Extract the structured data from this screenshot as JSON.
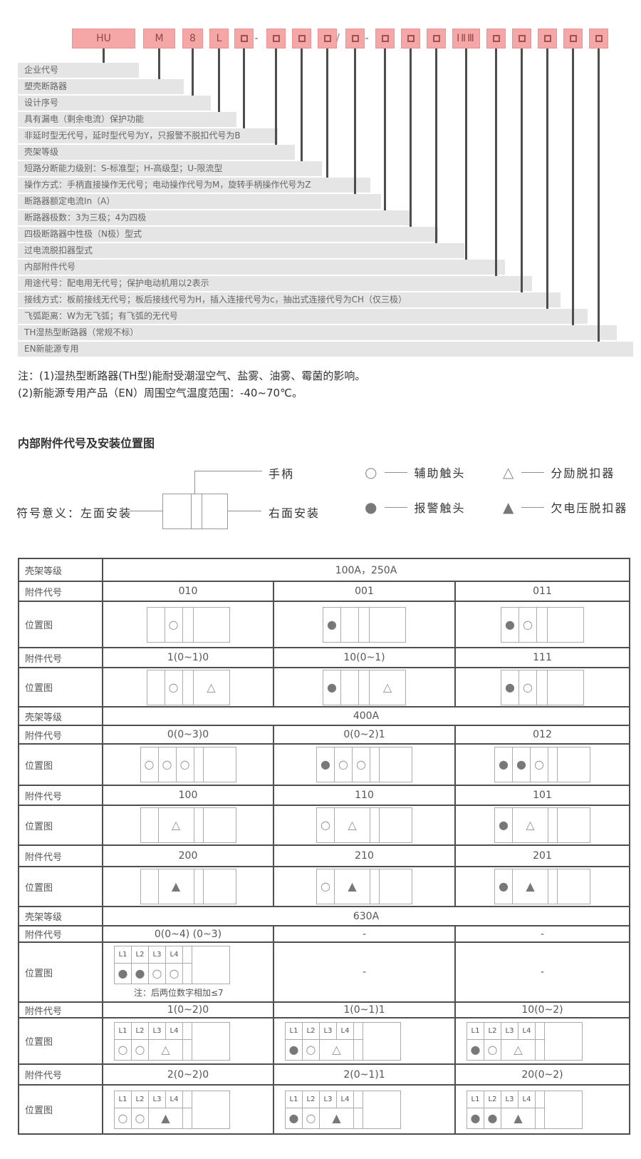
{
  "colors": {
    "accent_pink": "#F5A6A6",
    "accent_pink_border": "#EB9393",
    "code_text": "#8D4A45",
    "label_bg": "#E5E5E5",
    "connector_line": "#4D4D4D",
    "table_border": "#4F4F4F",
    "symbol_gray": "#8A8A8A"
  },
  "model_code": {
    "fields": [
      {
        "value": "HU",
        "description": "企业代号"
      },
      {
        "value": "M",
        "description": "塑壳断路器"
      },
      {
        "value": "8",
        "description": "设计序号"
      },
      {
        "value": "L",
        "description": "具有漏电（剩余电流）保护功能"
      },
      {
        "value": "□",
        "description": "非延时型无代号，延时型代号为Y，只报警不脱扣代号为B"
      },
      {
        "value": "□",
        "description": "壳架等级"
      },
      {
        "value": "□",
        "description": "短路分断能力级别：S-标准型；H-高级型；U-限流型"
      },
      {
        "value": "□",
        "description": "操作方式：手柄直接操作无代号；电动操作代号为M，旋转手柄操作代号为Z"
      },
      {
        "value": "□",
        "description": "断路器额定电流In（A）"
      },
      {
        "value": "□",
        "description": "断路器极数：3为三极；4为四极"
      },
      {
        "value": "□",
        "description": "四极断路器中性极（N极）型式"
      },
      {
        "value": "□",
        "description": "过电流脱扣器型式"
      },
      {
        "value": "ⅠⅡⅢ",
        "description": "内部附件代号"
      },
      {
        "value": "□",
        "description": "用途代号：配电用无代号；保护电动机用以2表示"
      },
      {
        "value": "□",
        "description": "接线方式：板前接线无代号；板后接线代号为H，插入连接代号为c，抽出式连接代号为CH（仅三极）"
      },
      {
        "value": "□",
        "description": "飞弧距离：W为无飞弧；有飞弧的无代号"
      },
      {
        "value": "□",
        "description": "TH湿热型断路器（常规不标）"
      },
      {
        "value": "□",
        "description": "EN新能源专用"
      }
    ],
    "separators": [
      {
        "char": "-",
        "after_field": 5
      },
      {
        "char": "/",
        "after_field": 8
      },
      {
        "char": "-",
        "after_field": 9
      }
    ]
  },
  "notes": [
    "注：(1)湿热型断路器(TH型)能耐受潮湿空气、盐雾、油雾、霉菌的影响。",
    "(2)新能源专用产品（EN）周围空气温度范围：-40~70℃。"
  ],
  "section_title": "内部附件代号及安装位置图",
  "legend": {
    "meaning_label": "符号意义：左面安装",
    "handle_label": "手柄",
    "right_label": "右面安装",
    "items": [
      {
        "symbol": "circle",
        "label": "辅助触头"
      },
      {
        "symbol": "triangle",
        "label": "分励脱扣器"
      },
      {
        "symbol": "filled-circle",
        "label": "报警触头"
      },
      {
        "symbol": "filled-triangle",
        "label": "欠电压脱扣器"
      }
    ]
  },
  "table": {
    "row_labels": {
      "frame": "壳架等级",
      "code": "附件代号",
      "position": "位置图"
    },
    "sections": [
      {
        "frame": "100A，250A",
        "rows": [
          {
            "cells": [
              {
                "code": "010",
                "diagram": {
                  "type": "A",
                  "symbols": {
                    "c2": "circle"
                  }
                }
              },
              {
                "code": "001",
                "diagram": {
                  "type": "A",
                  "symbols": {
                    "c1": "filled-circle"
                  }
                }
              },
              {
                "code": "011",
                "diagram": {
                  "type": "A",
                  "symbols": {
                    "c1": "filled-circle",
                    "c2": "circle"
                  }
                }
              }
            ]
          },
          {
            "cells": [
              {
                "code": "1(0~1)0",
                "diagram": {
                  "type": "A",
                  "symbols": {
                    "c2": "circle",
                    "c4": "triangle"
                  }
                }
              },
              {
                "code": "10(0~1)",
                "diagram": {
                  "type": "A",
                  "symbols": {
                    "c1": "filled-circle",
                    "c4": "triangle"
                  }
                }
              },
              {
                "code": "111",
                "diagram": {
                  "type": "A",
                  "symbols": {
                    "c1": "filled-circle",
                    "c2": "circle"
                  }
                }
              }
            ]
          }
        ]
      },
      {
        "frame": "400A",
        "rows": [
          {
            "cells": [
              {
                "code": "0(0~3)0",
                "diagram": {
                  "type": "B1",
                  "symbols": {
                    "c1": "circle",
                    "c2": "circle",
                    "c3": "circle"
                  }
                }
              },
              {
                "code": "0(0~2)1",
                "diagram": {
                  "type": "B1",
                  "symbols": {
                    "c1": "filled-circle",
                    "c2": "circle",
                    "c3": "circle"
                  }
                }
              },
              {
                "code": "012",
                "diagram": {
                  "type": "B1",
                  "symbols": {
                    "c1": "filled-circle",
                    "c2": "filled-circle",
                    "c3": "circle"
                  }
                }
              }
            ]
          },
          {
            "cells": [
              {
                "code": "100",
                "diagram": {
                  "type": "B2",
                  "symbols": {
                    "c2": "triangle"
                  }
                }
              },
              {
                "code": "110",
                "diagram": {
                  "type": "B2",
                  "symbols": {
                    "c1": "circle",
                    "c2": "triangle"
                  }
                }
              },
              {
                "code": "101",
                "diagram": {
                  "type": "B2",
                  "symbols": {
                    "c1": "filled-circle",
                    "c2": "triangle"
                  }
                }
              }
            ]
          },
          {
            "cells": [
              {
                "code": "200",
                "diagram": {
                  "type": "B2",
                  "symbols": {
                    "c2": "filled-triangle"
                  }
                }
              },
              {
                "code": "210",
                "diagram": {
                  "type": "B2",
                  "symbols": {
                    "c1": "circle",
                    "c2": "filled-triangle"
                  }
                }
              },
              {
                "code": "201",
                "diagram": {
                  "type": "B2",
                  "symbols": {
                    "c1": "filled-circle",
                    "c2": "filled-triangle"
                  }
                }
              }
            ]
          }
        ]
      },
      {
        "frame": "630A",
        "rows": [
          {
            "cells": [
              {
                "code": "0(0~4) (0~3)",
                "diagram": {
                  "type": "C",
                  "headers": [
                    "L1",
                    "L2",
                    "L3",
                    "L4"
                  ],
                  "symbols": {
                    "L1": "filled-circle",
                    "L2": "filled-circle",
                    "L3": "circle",
                    "L4": "circle"
                  },
                  "note": "注：后两位数字相加≤7"
                }
              },
              {
                "code": "-",
                "diagram": null
              },
              {
                "code": "-",
                "diagram": null
              }
            ]
          },
          {
            "cells": [
              {
                "code": "1(0~2)0",
                "diagram": {
                  "type": "C2",
                  "headers": [
                    "L1",
                    "L2",
                    "L3",
                    "L4"
                  ],
                  "symbols": {
                    "c1": "circle",
                    "c2": "circle",
                    "span": "triangle"
                  }
                }
              },
              {
                "code": "1(0~1)1",
                "diagram": {
                  "type": "C2",
                  "headers": [
                    "L1",
                    "L2",
                    "L3",
                    "L4"
                  ],
                  "symbols": {
                    "c1": "filled-circle",
                    "c2": "circle",
                    "span": "triangle"
                  }
                }
              },
              {
                "code": "10(0~2)",
                "diagram": {
                  "type": "C2",
                  "headers": [
                    "L1",
                    "L2",
                    "L3",
                    "L4"
                  ],
                  "symbols": {
                    "c1": "filled-circle",
                    "c2": "circle",
                    "span": "triangle"
                  }
                }
              }
            ]
          },
          {
            "cells": [
              {
                "code": "2(0~2)0",
                "diagram": {
                  "type": "C2",
                  "headers": [
                    "L1",
                    "L2",
                    "L3",
                    "L4"
                  ],
                  "symbols": {
                    "c1": "circle",
                    "c2": "circle",
                    "span": "filled-triangle"
                  }
                }
              },
              {
                "code": "2(0~1)1",
                "diagram": {
                  "type": "C2",
                  "headers": [
                    "L1",
                    "L2",
                    "L3",
                    "L4"
                  ],
                  "symbols": {
                    "c1": "filled-circle",
                    "c2": "circle",
                    "span": "filled-triangle"
                  }
                }
              },
              {
                "code": "20(0~2)",
                "diagram": {
                  "type": "C2",
                  "headers": [
                    "L1",
                    "L2",
                    "L3",
                    "L4"
                  ],
                  "symbols": {
                    "c1": "filled-circle",
                    "c2": "filled-circle",
                    "span": "filled-triangle"
                  }
                }
              }
            ]
          }
        ]
      }
    ]
  }
}
